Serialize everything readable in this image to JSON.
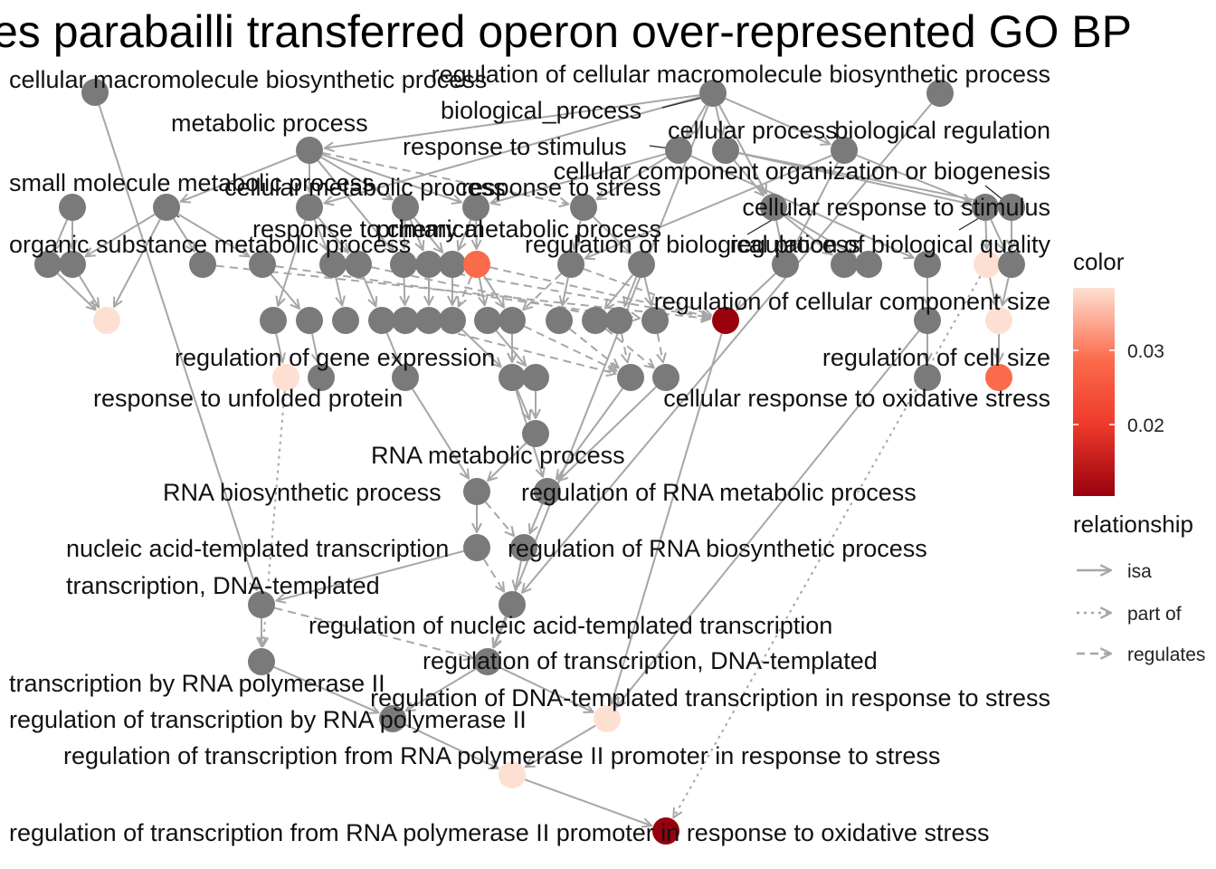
{
  "title": "es parabailli transferred operon over-represented GO BP",
  "colors": {
    "node_default": "#7a7a7a",
    "edge": "#a6a6a6",
    "scale_low": "#99000d",
    "scale_mid": "#fb6a4a",
    "scale_high": "#fee0d2"
  },
  "legend": {
    "color_title": "color",
    "color_ticks": [
      "0.03",
      "0.02"
    ],
    "relationship_title": "relationship",
    "relationships": [
      {
        "key": "isa",
        "label": "isa",
        "style": "solid"
      },
      {
        "key": "part_of",
        "label": "part of",
        "style": "dotted"
      },
      {
        "key": "regulates",
        "label": "regulates",
        "style": "dashed"
      }
    ]
  },
  "labels": [
    "cellular macromolecule biosynthetic process",
    "regulation of cellular macromolecule biosynthetic process",
    "biological_process",
    "metabolic process",
    "response to stimulus",
    "cellular process",
    "biological regulation",
    "cellular component organization or biogenesis",
    "small molecule metabolic process",
    "cellular metabolic process",
    "response to stress",
    "cellular response to stimulus",
    "response to chemical",
    "primary metabolic process",
    "organic substance metabolic process",
    "regulation of biological process",
    "regulation of biological quality",
    "regulation of cellular component size",
    "regulation of gene expression",
    "regulation of cell size",
    "response to unfolded protein",
    "cellular response to oxidative stress",
    "RNA metabolic process",
    "RNA biosynthetic process",
    "regulation of RNA metabolic process",
    "nucleic acid-templated transcription",
    "regulation of RNA biosynthetic process",
    "transcription, DNA-templated",
    "regulation of nucleic acid-templated transcription",
    "regulation of transcription, DNA-templated",
    "transcription by RNA polymerase II",
    "regulation of DNA-templated transcription in response to stress",
    "regulation of transcription by RNA polymerase II",
    "regulation of transcription from RNA polymerase II promoter in response to stress",
    "regulation of transcription from RNA polymerase II promoter in response to oxidative stress"
  ]
}
